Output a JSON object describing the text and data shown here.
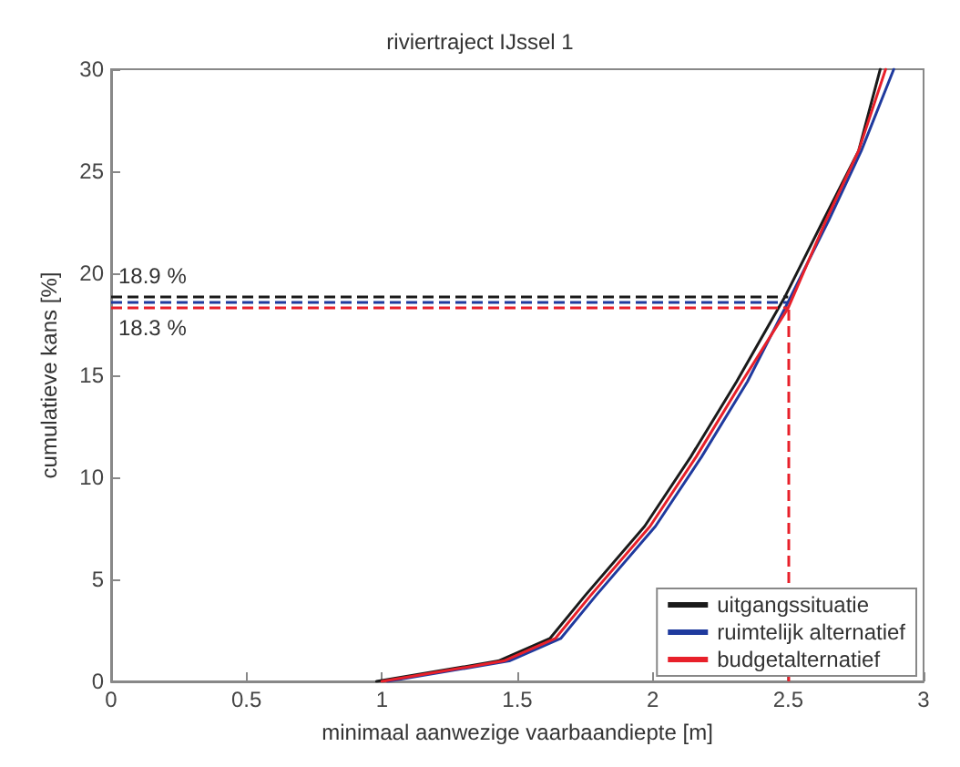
{
  "chart_data": {
    "type": "line",
    "title": "riviertraject IJssel 1",
    "xlabel": "minimaal aanwezige vaarbaandiepte [m]",
    "ylabel": "cumulatieve kans [%]",
    "xlim": [
      0,
      3
    ],
    "xticks": [
      0,
      0.5,
      1,
      1.5,
      2,
      2.5,
      3
    ],
    "ylim": [
      0,
      30
    ],
    "yticks": [
      0,
      5,
      10,
      15,
      20,
      25,
      30
    ],
    "x": [
      0.98,
      1.43,
      1.62,
      1.75,
      1.97,
      2.14,
      2.31,
      2.49,
      2.63,
      2.76,
      2.84
    ],
    "series": [
      {
        "name": "uitgangssituatie",
        "color": "#1a1a1a",
        "values": [
          0,
          1,
          2.1,
          4.2,
          7.6,
          11.0,
          14.7,
          18.9,
          22.6,
          26.0,
          30
        ]
      },
      {
        "name": "ruimtelijk alternatief",
        "color": "#1f3a9e",
        "x": [
          1.02,
          1.47,
          1.66,
          1.79,
          2.01,
          2.18,
          2.35,
          2.5,
          2.65,
          2.77,
          2.89
        ],
        "values": [
          0,
          1,
          2.1,
          4.2,
          7.6,
          11.0,
          14.7,
          18.6,
          22.6,
          26.0,
          30
        ]
      },
      {
        "name": "budgetalternatief",
        "color": "#e8202a",
        "x": [
          1.0,
          1.45,
          1.64,
          1.77,
          1.99,
          2.16,
          2.33,
          2.5,
          2.64,
          2.76,
          2.86
        ],
        "values": [
          0,
          1,
          2.1,
          4.2,
          7.6,
          11.0,
          14.7,
          18.3,
          22.6,
          26.0,
          30
        ]
      }
    ],
    "ref_lines": [
      {
        "axis": "y",
        "value": 18.9,
        "label": "18.9 %",
        "color": "#1a1a1a",
        "line_style": "dashed"
      },
      {
        "axis": "y",
        "value": 18.6,
        "color": "#1f3a9e",
        "line_style": "dashed"
      },
      {
        "axis": "y",
        "value": 18.3,
        "label": "18.3 %",
        "color": "#e8202a",
        "line_style": "dashed"
      },
      {
        "axis": "x",
        "value": 2.5,
        "color": "#e8202a",
        "line_style": "dashed"
      }
    ],
    "legend": "bottom right",
    "grid": false,
    "marker": "none",
    "line_style": "solid"
  }
}
